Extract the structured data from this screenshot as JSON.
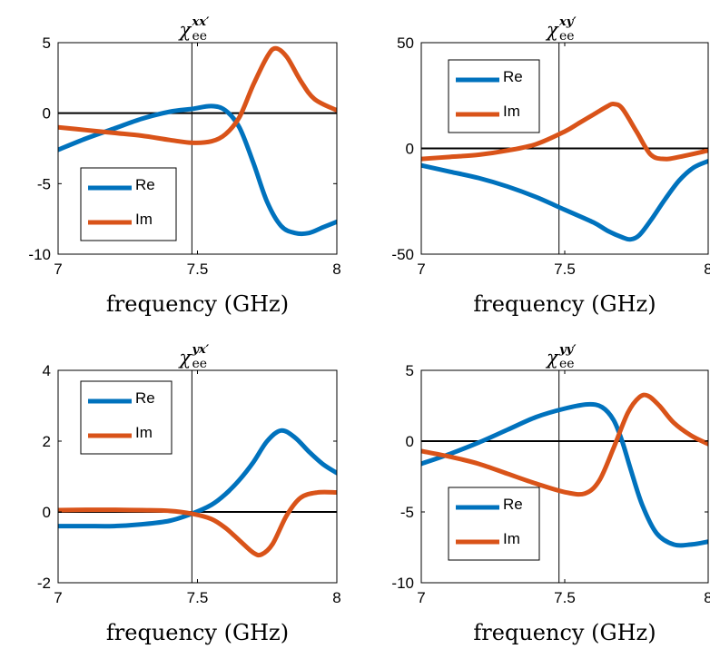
{
  "colors": {
    "re": "#0072BD",
    "im": "#D95319",
    "axis": "#000000",
    "zero": "#000000"
  },
  "chart_data": [
    {
      "type": "line",
      "title": {
        "main": "χ",
        "sub": "ee",
        "sup": "xx′"
      },
      "xlabel": "frequency (GHz)",
      "xlim": [
        7,
        8
      ],
      "ylim": [
        -10,
        5
      ],
      "xticks": [
        7,
        7.5,
        8
      ],
      "xtick_labels": [
        "7",
        "7.5",
        "8"
      ],
      "yticks": [
        5,
        0,
        -5,
        -10
      ],
      "ytick_labels": [
        "5",
        "0",
        "-5",
        "-10"
      ],
      "vline": 7.48,
      "hline": 0,
      "legend": "lower-left",
      "series": [
        {
          "name": "Re",
          "color": "#0072BD",
          "x": [
            7,
            7.1,
            7.2,
            7.3,
            7.4,
            7.48,
            7.55,
            7.6,
            7.65,
            7.7,
            7.75,
            7.8,
            7.85,
            7.9,
            7.95,
            8
          ],
          "y": [
            -2.6,
            -1.8,
            -1.1,
            -0.4,
            0.1,
            0.3,
            0.5,
            0.2,
            -1.0,
            -3.5,
            -6.3,
            -8.0,
            -8.5,
            -8.5,
            -8.1,
            -7.7
          ]
        },
        {
          "name": "Im",
          "color": "#D95319",
          "x": [
            7,
            7.1,
            7.2,
            7.3,
            7.4,
            7.48,
            7.55,
            7.6,
            7.65,
            7.7,
            7.75,
            7.78,
            7.82,
            7.87,
            7.92,
            8
          ],
          "y": [
            -1.0,
            -1.2,
            -1.4,
            -1.6,
            -1.9,
            -2.1,
            -2.0,
            -1.5,
            -0.3,
            2.0,
            4.0,
            4.6,
            4.0,
            2.3,
            1.0,
            0.2
          ]
        }
      ]
    },
    {
      "type": "line",
      "title": {
        "main": "χ",
        "sub": "ee",
        "sup": "xy′"
      },
      "xlabel": "frequency (GHz)",
      "xlim": [
        7,
        8
      ],
      "ylim": [
        -50,
        50
      ],
      "xticks": [
        7,
        7.5,
        8
      ],
      "xtick_labels": [
        "7",
        "7.5",
        "8"
      ],
      "yticks": [
        50,
        0,
        -50
      ],
      "ytick_labels": [
        "50",
        "0",
        "-50"
      ],
      "vline": 7.48,
      "hline": 0,
      "legend": "top-left",
      "series": [
        {
          "name": "Re",
          "color": "#0072BD",
          "x": [
            7,
            7.1,
            7.2,
            7.3,
            7.4,
            7.5,
            7.6,
            7.65,
            7.7,
            7.73,
            7.76,
            7.8,
            7.85,
            7.9,
            7.95,
            8
          ],
          "y": [
            -8,
            -11,
            -14,
            -18,
            -23,
            -29,
            -35,
            -39,
            -42,
            -43,
            -41,
            -34,
            -24,
            -15,
            -9,
            -6
          ]
        },
        {
          "name": "Im",
          "color": "#D95319",
          "x": [
            7,
            7.1,
            7.2,
            7.3,
            7.4,
            7.5,
            7.55,
            7.6,
            7.65,
            7.67,
            7.7,
            7.75,
            7.8,
            7.85,
            7.9,
            8
          ],
          "y": [
            -5,
            -4,
            -3,
            -1,
            2,
            8,
            12,
            16,
            20,
            21,
            19,
            8,
            -3,
            -5,
            -4,
            -1
          ]
        }
      ]
    },
    {
      "type": "line",
      "title": {
        "main": "χ",
        "sub": "ee",
        "sup": "yx′"
      },
      "xlabel": "frequency (GHz)",
      "xlim": [
        7,
        8
      ],
      "ylim": [
        -2,
        4
      ],
      "xticks": [
        7,
        7.5,
        8
      ],
      "xtick_labels": [
        "7",
        "7.5",
        "8"
      ],
      "yticks": [
        4,
        2,
        0,
        -2
      ],
      "ytick_labels": [
        "4",
        "2",
        "0",
        "-2"
      ],
      "vline": 7.48,
      "hline": 0,
      "legend": "top-left",
      "series": [
        {
          "name": "Re",
          "color": "#0072BD",
          "x": [
            7,
            7.1,
            7.2,
            7.3,
            7.4,
            7.48,
            7.55,
            7.6,
            7.65,
            7.7,
            7.75,
            7.8,
            7.85,
            7.9,
            7.95,
            8
          ],
          "y": [
            -0.4,
            -0.4,
            -0.4,
            -0.35,
            -0.25,
            -0.05,
            0.2,
            0.5,
            0.9,
            1.4,
            2.0,
            2.3,
            2.1,
            1.7,
            1.35,
            1.1
          ]
        },
        {
          "name": "Im",
          "color": "#D95319",
          "x": [
            7,
            7.1,
            7.2,
            7.3,
            7.4,
            7.48,
            7.55,
            7.6,
            7.65,
            7.7,
            7.73,
            7.77,
            7.82,
            7.87,
            7.93,
            8
          ],
          "y": [
            0.05,
            0.06,
            0.06,
            0.05,
            0.03,
            -0.05,
            -0.2,
            -0.45,
            -0.8,
            -1.15,
            -1.2,
            -0.9,
            -0.1,
            0.4,
            0.55,
            0.55
          ]
        }
      ]
    },
    {
      "type": "line",
      "title": {
        "main": "χ",
        "sub": "ee",
        "sup": "yy′"
      },
      "xlabel": "frequency (GHz)",
      "xlim": [
        7,
        8
      ],
      "ylim": [
        -10,
        5
      ],
      "xticks": [
        7,
        7.5,
        8
      ],
      "xtick_labels": [
        "7",
        "7.5",
        "8"
      ],
      "yticks": [
        5,
        0,
        -5,
        -10
      ],
      "ytick_labels": [
        "5",
        "0",
        "-5",
        "-10"
      ],
      "vline": 7.48,
      "hline": 0,
      "legend": "lower-left",
      "series": [
        {
          "name": "Re",
          "color": "#0072BD",
          "x": [
            7,
            7.1,
            7.2,
            7.3,
            7.4,
            7.5,
            7.58,
            7.63,
            7.67,
            7.7,
            7.73,
            7.77,
            7.82,
            7.88,
            7.94,
            8
          ],
          "y": [
            -1.6,
            -0.9,
            -0.1,
            0.8,
            1.7,
            2.3,
            2.6,
            2.4,
            1.5,
            0.0,
            -2.0,
            -4.5,
            -6.5,
            -7.3,
            -7.3,
            -7.1
          ]
        },
        {
          "name": "Im",
          "color": "#D95319",
          "x": [
            7,
            7.1,
            7.2,
            7.3,
            7.4,
            7.5,
            7.57,
            7.62,
            7.67,
            7.72,
            7.76,
            7.79,
            7.83,
            7.88,
            7.94,
            8
          ],
          "y": [
            -0.7,
            -1.1,
            -1.6,
            -2.3,
            -3.0,
            -3.6,
            -3.7,
            -2.8,
            -0.5,
            2.0,
            3.1,
            3.2,
            2.5,
            1.3,
            0.4,
            -0.2
          ]
        }
      ]
    }
  ]
}
